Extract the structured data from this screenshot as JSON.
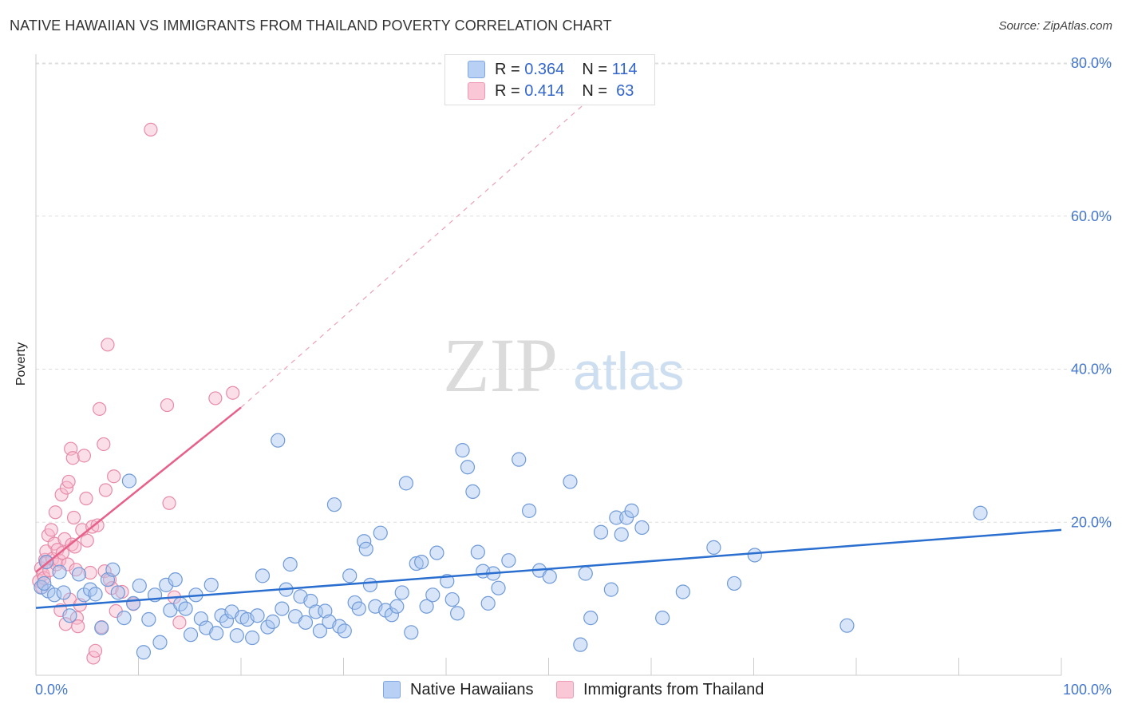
{
  "title": "NATIVE HAWAIIAN VS IMMIGRANTS FROM THAILAND POVERTY CORRELATION CHART",
  "source": "Source: ZipAtlas.com",
  "watermark": {
    "zip": "ZIP",
    "atlas": "atlas"
  },
  "legend": {
    "series1": {
      "r_label": "R =",
      "r_value": "0.364",
      "n_label": "N =",
      "n_value": "114"
    },
    "series2": {
      "r_label": "R =",
      "r_value": "0.414",
      "n_label": "N =",
      "n_value": "63"
    }
  },
  "colors": {
    "blue_fill": "#a8c6f0",
    "blue_stroke": "#6f9ad8",
    "blue_line": "#2a6fcf",
    "pink_fill": "#f7b8cc",
    "pink_stroke": "#e88aa8",
    "pink_line": "#e8608a",
    "axis_text": "#4477cc",
    "grid": "#dddddd"
  },
  "chart_data": {
    "type": "scatter",
    "title": "NATIVE HAWAIIAN VS IMMIGRANTS FROM THAILAND POVERTY CORRELATION CHART",
    "xlabel": "",
    "ylabel": "Poverty",
    "xlim": [
      0,
      100
    ],
    "ylim": [
      0,
      80
    ],
    "x_tick_labels": [
      "0.0%",
      "100.0%"
    ],
    "y_tick_labels": [
      "20.0%",
      "40.0%",
      "60.0%",
      "80.0%"
    ],
    "y_ticks": [
      20,
      40,
      60,
      80
    ],
    "grid": true,
    "legend_position": "top-center",
    "series": [
      {
        "name": "Native Hawaiians",
        "color": "#a8c6f0",
        "r": 0.364,
        "n": 114,
        "trend": {
          "x0": 0,
          "y0": 8.8,
          "x1": 100,
          "y1": 19.0
        },
        "points": [
          [
            0.5,
            11.5
          ],
          [
            1.2,
            11.0
          ],
          [
            1.8,
            10.5
          ],
          [
            2.3,
            13.5
          ],
          [
            2.7,
            10.8
          ],
          [
            3.3,
            7.8
          ],
          [
            4.2,
            13.2
          ],
          [
            4.7,
            10.5
          ],
          [
            5.3,
            11.2
          ],
          [
            5.8,
            10.6
          ],
          [
            6.4,
            6.2
          ],
          [
            7.0,
            12.5
          ],
          [
            7.5,
            13.8
          ],
          [
            8.0,
            10.8
          ],
          [
            8.6,
            7.5
          ],
          [
            9.1,
            25.4
          ],
          [
            9.5,
            9.4
          ],
          [
            10.1,
            11.7
          ],
          [
            10.5,
            3.0
          ],
          [
            11.0,
            7.3
          ],
          [
            11.6,
            10.5
          ],
          [
            12.1,
            4.3
          ],
          [
            12.7,
            11.8
          ],
          [
            13.1,
            8.5
          ],
          [
            13.6,
            12.5
          ],
          [
            14.1,
            9.3
          ],
          [
            14.6,
            8.7
          ],
          [
            15.1,
            5.3
          ],
          [
            15.6,
            10.5
          ],
          [
            16.1,
            7.4
          ],
          [
            16.6,
            6.2
          ],
          [
            17.1,
            11.8
          ],
          [
            17.6,
            5.5
          ],
          [
            18.1,
            7.8
          ],
          [
            18.6,
            7.1
          ],
          [
            19.1,
            8.3
          ],
          [
            19.6,
            5.2
          ],
          [
            20.1,
            7.6
          ],
          [
            20.6,
            7.3
          ],
          [
            21.1,
            4.9
          ],
          [
            21.6,
            7.8
          ],
          [
            22.1,
            13.0
          ],
          [
            22.6,
            6.3
          ],
          [
            23.1,
            7.0
          ],
          [
            23.6,
            30.7
          ],
          [
            24.0,
            8.7
          ],
          [
            24.4,
            11.2
          ],
          [
            24.8,
            14.5
          ],
          [
            25.3,
            7.7
          ],
          [
            25.8,
            10.3
          ],
          [
            26.3,
            6.9
          ],
          [
            26.8,
            9.7
          ],
          [
            27.3,
            8.3
          ],
          [
            27.7,
            5.8
          ],
          [
            28.2,
            8.4
          ],
          [
            28.6,
            7.0
          ],
          [
            29.1,
            22.3
          ],
          [
            29.6,
            6.4
          ],
          [
            30.1,
            5.8
          ],
          [
            30.6,
            13.0
          ],
          [
            31.1,
            9.5
          ],
          [
            31.5,
            8.7
          ],
          [
            32.0,
            17.5
          ],
          [
            32.2,
            16.5
          ],
          [
            32.6,
            11.8
          ],
          [
            33.1,
            9.0
          ],
          [
            33.6,
            18.6
          ],
          [
            34.1,
            8.5
          ],
          [
            34.7,
            7.9
          ],
          [
            35.2,
            9.0
          ],
          [
            35.7,
            10.8
          ],
          [
            36.1,
            25.1
          ],
          [
            36.6,
            5.6
          ],
          [
            37.1,
            14.6
          ],
          [
            37.6,
            14.8
          ],
          [
            38.1,
            9.0
          ],
          [
            38.7,
            10.5
          ],
          [
            39.1,
            16.0
          ],
          [
            40.1,
            12.3
          ],
          [
            40.6,
            9.9
          ],
          [
            41.1,
            8.1
          ],
          [
            41.6,
            29.4
          ],
          [
            42.1,
            27.2
          ],
          [
            42.6,
            24.0
          ],
          [
            43.1,
            16.1
          ],
          [
            43.6,
            13.6
          ],
          [
            44.1,
            9.4
          ],
          [
            44.6,
            13.3
          ],
          [
            45.1,
            11.4
          ],
          [
            46.1,
            15.0
          ],
          [
            47.1,
            28.2
          ],
          [
            48.1,
            21.5
          ],
          [
            49.1,
            13.7
          ],
          [
            50.1,
            12.9
          ],
          [
            52.1,
            25.3
          ],
          [
            53.1,
            4.0
          ],
          [
            53.6,
            13.3
          ],
          [
            54.1,
            7.5
          ],
          [
            55.1,
            18.7
          ],
          [
            56.1,
            11.2
          ],
          [
            56.6,
            20.6
          ],
          [
            57.1,
            18.4
          ],
          [
            57.6,
            20.6
          ],
          [
            58.1,
            21.5
          ],
          [
            59.1,
            19.3
          ],
          [
            61.1,
            7.5
          ],
          [
            63.1,
            10.9
          ],
          [
            66.1,
            16.7
          ],
          [
            68.1,
            12.0
          ],
          [
            70.1,
            15.7
          ],
          [
            79.1,
            6.5
          ],
          [
            92.1,
            21.2
          ],
          [
            1.0,
            14.8
          ],
          [
            0.8,
            12.0
          ]
        ]
      },
      {
        "name": "Immigrants from Thailand",
        "color": "#f7b8cc",
        "r": 0.414,
        "n": 63,
        "trend": {
          "x0": 0,
          "y0": 13.5,
          "x1": 20,
          "y1": 35.0,
          "x_dash_end": 58,
          "y_dash_end": 80
        },
        "points": [
          [
            0.3,
            12.3
          ],
          [
            0.5,
            14.0
          ],
          [
            0.6,
            11.5
          ],
          [
            0.7,
            13.2
          ],
          [
            0.8,
            12.7
          ],
          [
            0.9,
            15.1
          ],
          [
            1.0,
            16.2
          ],
          [
            1.1,
            14.8
          ],
          [
            1.2,
            18.3
          ],
          [
            1.3,
            13.7
          ],
          [
            1.5,
            19.0
          ],
          [
            1.6,
            15.2
          ],
          [
            1.8,
            17.2
          ],
          [
            1.9,
            21.3
          ],
          [
            2.0,
            14.5
          ],
          [
            2.1,
            16.4
          ],
          [
            2.3,
            15.0
          ],
          [
            2.4,
            8.5
          ],
          [
            2.5,
            23.6
          ],
          [
            2.6,
            16.0
          ],
          [
            2.8,
            17.8
          ],
          [
            2.9,
            6.7
          ],
          [
            3.0,
            24.5
          ],
          [
            3.1,
            14.5
          ],
          [
            3.2,
            25.3
          ],
          [
            3.3,
            9.9
          ],
          [
            3.4,
            29.6
          ],
          [
            3.5,
            17.1
          ],
          [
            3.6,
            28.4
          ],
          [
            3.7,
            20.6
          ],
          [
            3.8,
            16.8
          ],
          [
            3.9,
            13.8
          ],
          [
            4.0,
            7.5
          ],
          [
            4.1,
            6.4
          ],
          [
            4.3,
            9.2
          ],
          [
            4.5,
            19.0
          ],
          [
            4.7,
            28.7
          ],
          [
            4.9,
            23.1
          ],
          [
            5.0,
            17.6
          ],
          [
            5.3,
            13.4
          ],
          [
            5.5,
            19.4
          ],
          [
            5.6,
            2.3
          ],
          [
            5.8,
            3.2
          ],
          [
            6.0,
            19.6
          ],
          [
            6.2,
            34.8
          ],
          [
            6.4,
            6.3
          ],
          [
            6.6,
            30.2
          ],
          [
            6.7,
            13.6
          ],
          [
            6.8,
            24.2
          ],
          [
            7.0,
            43.2
          ],
          [
            7.2,
            12.5
          ],
          [
            7.4,
            11.4
          ],
          [
            7.6,
            26.0
          ],
          [
            7.8,
            8.4
          ],
          [
            8.4,
            10.9
          ],
          [
            9.5,
            9.3
          ],
          [
            11.2,
            71.3
          ],
          [
            12.8,
            35.3
          ],
          [
            13.0,
            22.5
          ],
          [
            13.5,
            10.2
          ],
          [
            14.0,
            6.9
          ],
          [
            17.5,
            36.2
          ],
          [
            19.2,
            36.9
          ]
        ]
      }
    ]
  },
  "bottom_legend": {
    "series1": "Native Hawaiians",
    "series2": "Immigrants from Thailand"
  }
}
